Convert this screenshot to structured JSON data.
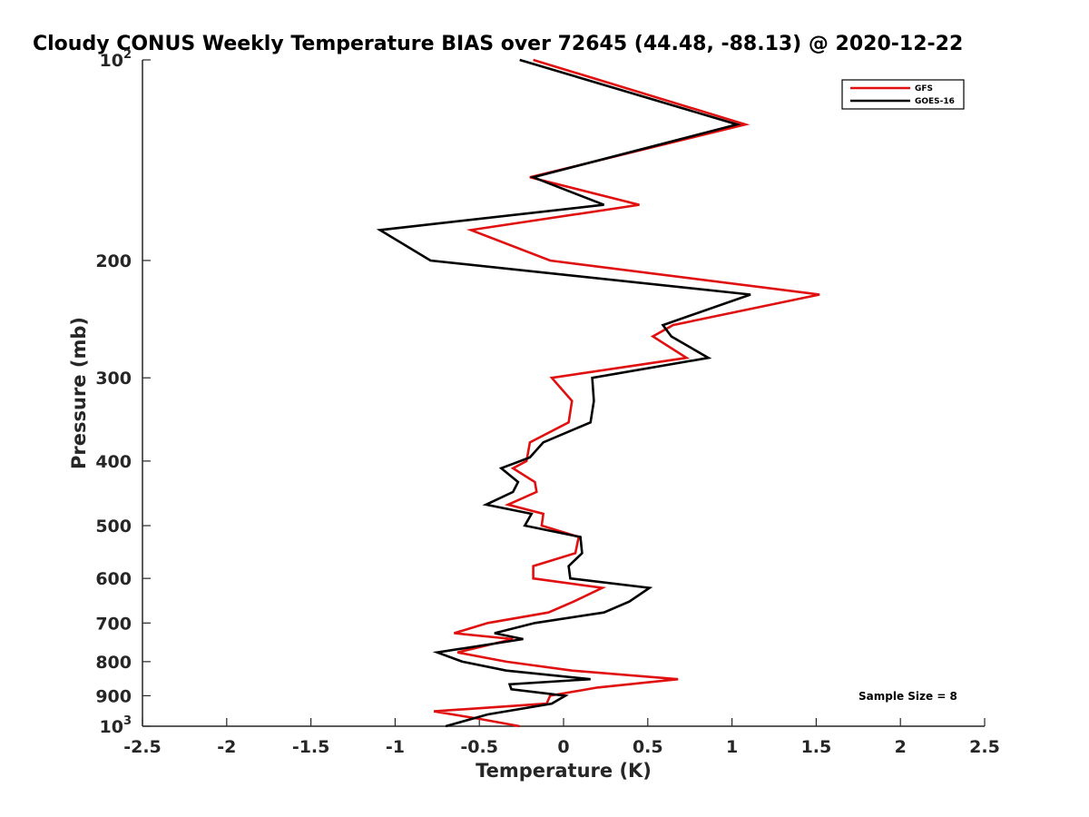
{
  "chart_data": {
    "type": "line",
    "title": "Cloudy CONUS Weekly Temperature BIAS over 72645 (44.48, -88.13) @ 2020-12-22",
    "xlabel": "Temperature (K)",
    "ylabel": "Pressure (mb)",
    "xlim": [
      -2.5,
      2.5
    ],
    "ylim": [
      100,
      1000
    ],
    "y_scale": "log",
    "y_reversed": true,
    "xticks": [
      {
        "value": -2.5,
        "label": "-2.5"
      },
      {
        "value": -2,
        "label": "-2"
      },
      {
        "value": -1.5,
        "label": "-1.5"
      },
      {
        "value": -1,
        "label": "-1"
      },
      {
        "value": -0.5,
        "label": "-0.5"
      },
      {
        "value": 0,
        "label": "0"
      },
      {
        "value": 0.5,
        "label": "0.5"
      },
      {
        "value": 1,
        "label": "1"
      },
      {
        "value": 1.5,
        "label": "1.5"
      },
      {
        "value": 2,
        "label": "2"
      },
      {
        "value": 2.5,
        "label": "2.5"
      }
    ],
    "yticks": [
      {
        "value": 100,
        "base": "10",
        "exp": "2"
      },
      {
        "value": 200,
        "label": "200"
      },
      {
        "value": 300,
        "label": "300"
      },
      {
        "value": 400,
        "label": "400"
      },
      {
        "value": 500,
        "label": "500"
      },
      {
        "value": 600,
        "label": "600"
      },
      {
        "value": 700,
        "label": "700"
      },
      {
        "value": 800,
        "label": "800"
      },
      {
        "value": 900,
        "label": "900"
      },
      {
        "value": 1000,
        "base": "10",
        "exp": "3"
      }
    ],
    "grid": false,
    "legend_position": "top-right",
    "series": [
      {
        "name": "GFS",
        "color": "#e01010",
        "points": [
          [
            -0.18,
            100
          ],
          [
            1.08,
            125
          ],
          [
            -0.2,
            150
          ],
          [
            0.45,
            165
          ],
          [
            -0.55,
            180
          ],
          [
            -0.08,
            200
          ],
          [
            1.52,
            225
          ],
          [
            0.65,
            250
          ],
          [
            0.53,
            260
          ],
          [
            0.73,
            280
          ],
          [
            -0.07,
            300
          ],
          [
            0.05,
            325
          ],
          [
            0.03,
            350
          ],
          [
            -0.2,
            375
          ],
          [
            -0.22,
            400
          ],
          [
            -0.3,
            410
          ],
          [
            -0.17,
            430
          ],
          [
            -0.16,
            445
          ],
          [
            -0.33,
            465
          ],
          [
            -0.12,
            480
          ],
          [
            -0.13,
            500
          ],
          [
            0.09,
            520
          ],
          [
            0.07,
            550
          ],
          [
            -0.18,
            575
          ],
          [
            -0.18,
            600
          ],
          [
            0.23,
            620
          ],
          [
            0.06,
            650
          ],
          [
            -0.09,
            675
          ],
          [
            -0.45,
            700
          ],
          [
            -0.65,
            725
          ],
          [
            -0.3,
            740
          ],
          [
            -0.63,
            775
          ],
          [
            -0.34,
            800
          ],
          [
            0.05,
            825
          ],
          [
            0.68,
            850
          ],
          [
            0.2,
            875
          ],
          [
            -0.08,
            900
          ],
          [
            -0.1,
            925
          ],
          [
            -0.77,
            950
          ],
          [
            -0.5,
            975
          ],
          [
            -0.26,
            1000
          ]
        ]
      },
      {
        "name": "GOES-16",
        "color": "#000000",
        "points": [
          [
            -0.26,
            100
          ],
          [
            1.03,
            125
          ],
          [
            -0.18,
            150
          ],
          [
            0.24,
            165
          ],
          [
            -1.09,
            180
          ],
          [
            -0.79,
            200
          ],
          [
            1.11,
            225
          ],
          [
            0.59,
            250
          ],
          [
            0.64,
            260
          ],
          [
            0.86,
            280
          ],
          [
            0.17,
            300
          ],
          [
            0.18,
            325
          ],
          [
            0.16,
            350
          ],
          [
            -0.12,
            375
          ],
          [
            -0.2,
            395
          ],
          [
            -0.37,
            410
          ],
          [
            -0.27,
            430
          ],
          [
            -0.3,
            445
          ],
          [
            -0.46,
            465
          ],
          [
            -0.19,
            480
          ],
          [
            -0.23,
            500
          ],
          [
            0.1,
            520
          ],
          [
            0.11,
            550
          ],
          [
            0.03,
            575
          ],
          [
            0.04,
            600
          ],
          [
            0.51,
            620
          ],
          [
            0.39,
            650
          ],
          [
            0.24,
            675
          ],
          [
            -0.17,
            700
          ],
          [
            -0.41,
            725
          ],
          [
            -0.24,
            740
          ],
          [
            -0.75,
            775
          ],
          [
            -0.6,
            800
          ],
          [
            -0.34,
            825
          ],
          [
            0.16,
            850
          ],
          [
            -0.32,
            865
          ],
          [
            -0.31,
            880
          ],
          [
            0.01,
            900
          ],
          [
            -0.07,
            925
          ],
          [
            -0.45,
            960
          ],
          [
            -0.7,
            1000
          ]
        ]
      }
    ],
    "annotations": [
      "Sample Size = 8"
    ]
  }
}
